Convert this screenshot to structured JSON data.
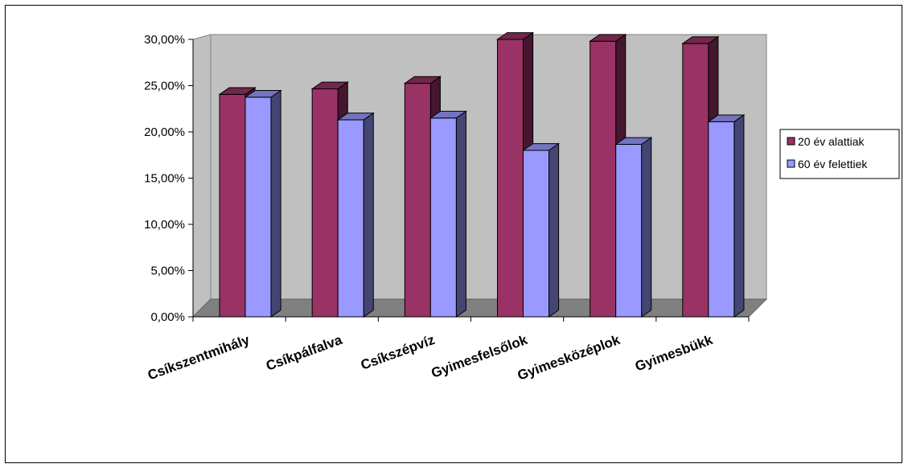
{
  "chart_data": {
    "type": "bar",
    "style": "3d-clustered-column",
    "categories": [
      "Csíkszentmihály",
      "Csíkpálfalva",
      "Csíkszépvíz",
      "Gyimesfelsőlok",
      "Gyimesközéplok",
      "Gyimesbükk"
    ],
    "series": [
      {
        "name": "20 év alattiak",
        "values": [
          0.2405,
          0.2465,
          0.2525,
          0.3,
          0.298,
          0.2955
        ],
        "color": "#993366"
      },
      {
        "name": "60 év felettiek",
        "values": [
          0.2375,
          0.213,
          0.215,
          0.18,
          0.1865,
          0.211
        ],
        "color": "#9999ff"
      }
    ],
    "yticks": [
      "0,00%",
      "5,00%",
      "10,00%",
      "15,00%",
      "20,00%",
      "25,00%",
      "30,00%"
    ],
    "ylim": [
      0,
      0.3
    ],
    "grid": false,
    "legend_position": "right",
    "wall_color": "#c0c0c0",
    "floor_color": "#808080"
  }
}
